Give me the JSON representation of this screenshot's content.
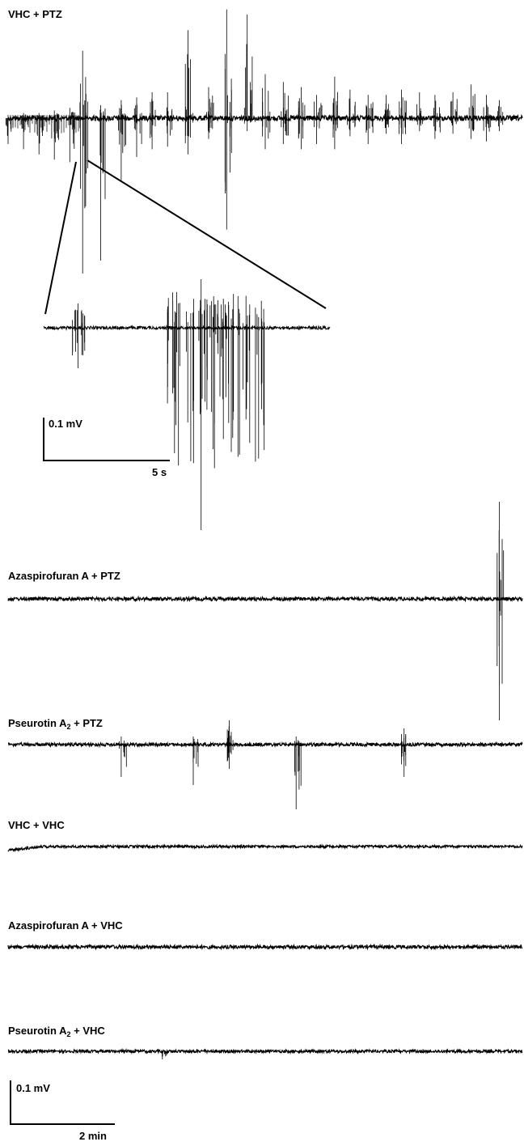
{
  "colors": {
    "trace": "#000000",
    "background": "#ffffff"
  },
  "chart_data": [
    {
      "type": "line",
      "title": "VHC + PTZ",
      "description_of_signal": "baseline trace with repeated seizure-like spike bursts",
      "spike_bursts": [
        {
          "t": 0.0,
          "up": 0.0,
          "down": 0.1
        },
        {
          "t": 0.03,
          "up": 0.02,
          "down": 0.12
        },
        {
          "t": 0.06,
          "up": 0.02,
          "down": 0.14
        },
        {
          "t": 0.09,
          "up": 0.03,
          "down": 0.16
        },
        {
          "t": 0.12,
          "up": 0.04,
          "down": 0.17
        },
        {
          "t": 0.145,
          "up": 0.26,
          "down": 0.6
        },
        {
          "t": 0.18,
          "up": 0.05,
          "down": 0.55
        },
        {
          "t": 0.22,
          "up": 0.07,
          "down": 0.24
        },
        {
          "t": 0.25,
          "up": 0.08,
          "down": 0.15
        },
        {
          "t": 0.28,
          "up": 0.1,
          "down": 0.12
        },
        {
          "t": 0.31,
          "up": 0.1,
          "down": 0.11
        },
        {
          "t": 0.35,
          "up": 0.34,
          "down": 0.14
        },
        {
          "t": 0.39,
          "up": 0.12,
          "down": 0.08
        },
        {
          "t": 0.425,
          "up": 0.42,
          "down": 0.43
        },
        {
          "t": 0.465,
          "up": 0.4,
          "down": 0.05
        },
        {
          "t": 0.5,
          "up": 0.17,
          "down": 0.12
        },
        {
          "t": 0.535,
          "up": 0.14,
          "down": 0.1
        },
        {
          "t": 0.57,
          "up": 0.12,
          "down": 0.12
        },
        {
          "t": 0.6,
          "up": 0.09,
          "down": 0.1
        },
        {
          "t": 0.635,
          "up": 0.16,
          "down": 0.12
        },
        {
          "t": 0.665,
          "up": 0.11,
          "down": 0.07
        },
        {
          "t": 0.7,
          "up": 0.09,
          "down": 0.1
        },
        {
          "t": 0.735,
          "up": 0.09,
          "down": 0.06
        },
        {
          "t": 0.765,
          "up": 0.11,
          "down": 0.1
        },
        {
          "t": 0.8,
          "up": 0.1,
          "down": 0.05
        },
        {
          "t": 0.83,
          "up": 0.09,
          "down": 0.08
        },
        {
          "t": 0.865,
          "up": 0.1,
          "down": 0.06
        },
        {
          "t": 0.9,
          "up": 0.13,
          "down": 0.08
        },
        {
          "t": 0.93,
          "up": 0.09,
          "down": 0.09
        },
        {
          "t": 0.955,
          "up": 0.07,
          "down": 0.05
        }
      ]
    },
    {
      "type": "line",
      "title": "",
      "description_of_signal": "zoomed inset of one burst",
      "spike_bursts": [
        {
          "t": 0.12,
          "up": 0.03,
          "down": 0.05
        },
        {
          "t": 0.55,
          "up": 0.06,
          "down": 0.25
        }
      ]
    },
    {
      "type": "line",
      "title": "Azaspirofuran A + PTZ",
      "spike_bursts": [
        {
          "t": 0.955,
          "up": 0.12,
          "down": 0.15
        }
      ]
    },
    {
      "type": "line",
      "title_main": "Pseurotin A",
      "title_sub": "2",
      "title_rest": " + PTZ",
      "spike_bursts": [
        {
          "t": 0.22,
          "up": 0.01,
          "down": 0.04
        },
        {
          "t": 0.36,
          "up": 0.01,
          "down": 0.05
        },
        {
          "t": 0.43,
          "up": 0.03,
          "down": 0.03
        },
        {
          "t": 0.56,
          "up": 0.01,
          "down": 0.08
        },
        {
          "t": 0.77,
          "up": 0.02,
          "down": 0.04
        }
      ]
    },
    {
      "type": "line",
      "title": "VHC + VHC",
      "spike_bursts": []
    },
    {
      "type": "line",
      "title": "Azaspirofuran A + VHC",
      "spike_bursts": []
    },
    {
      "type": "line",
      "title_main": "Pseurotin A",
      "title_sub": "2",
      "title_rest": " + VHC",
      "spike_bursts": [
        {
          "t": 0.3,
          "up": 0.0,
          "down": 0.01
        }
      ]
    }
  ],
  "scale_bars": {
    "inset": {
      "v_label": "0.1 mV",
      "t_label": "5 s"
    },
    "main": {
      "v_label": "0.1 mV",
      "t_label": "2 min"
    }
  }
}
